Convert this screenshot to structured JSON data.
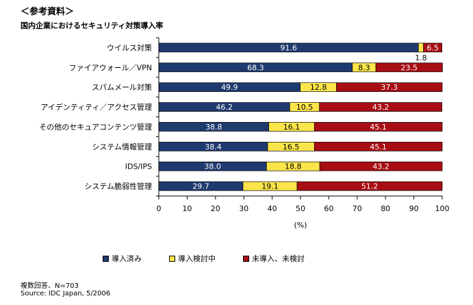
{
  "header": {
    "title": "＜参考資料＞",
    "subtitle": "国内企業におけるセキュリティ対策導入率"
  },
  "chart_data": {
    "type": "bar",
    "orientation": "horizontal",
    "stacked": true,
    "categories": [
      "ウイルス対策",
      "ファイアウォール／VPN",
      "スパムメール対策",
      "アイデンティティ／アクセス管理",
      "その他のセキュアコンテンツ管理",
      "システム情報管理",
      "IDS/IPS",
      "システム脆弱性管理"
    ],
    "series": [
      {
        "name": "導入済み",
        "color": "#1f3a6e",
        "values": [
          91.6,
          68.3,
          49.9,
          46.2,
          38.8,
          38.4,
          38.0,
          29.7
        ]
      },
      {
        "name": "導入検討中",
        "color": "#fbe54b",
        "values": [
          1.8,
          8.3,
          12.8,
          10.5,
          16.1,
          16.5,
          18.8,
          19.1
        ]
      },
      {
        "name": "未導入、未検討",
        "color": "#a80d13",
        "values": [
          6.5,
          23.5,
          37.3,
          43.2,
          45.1,
          45.1,
          43.2,
          51.2
        ]
      }
    ],
    "xlim": [
      0,
      100
    ],
    "xticks": [
      0,
      10,
      20,
      30,
      40,
      50,
      60,
      70,
      80,
      90,
      100
    ],
    "xlabel": "(%)",
    "grid": false,
    "legend_position": "bottom"
  },
  "footer": {
    "note": "複数回答、N=703",
    "source": "Source: IDC Japan, 5/2006"
  }
}
